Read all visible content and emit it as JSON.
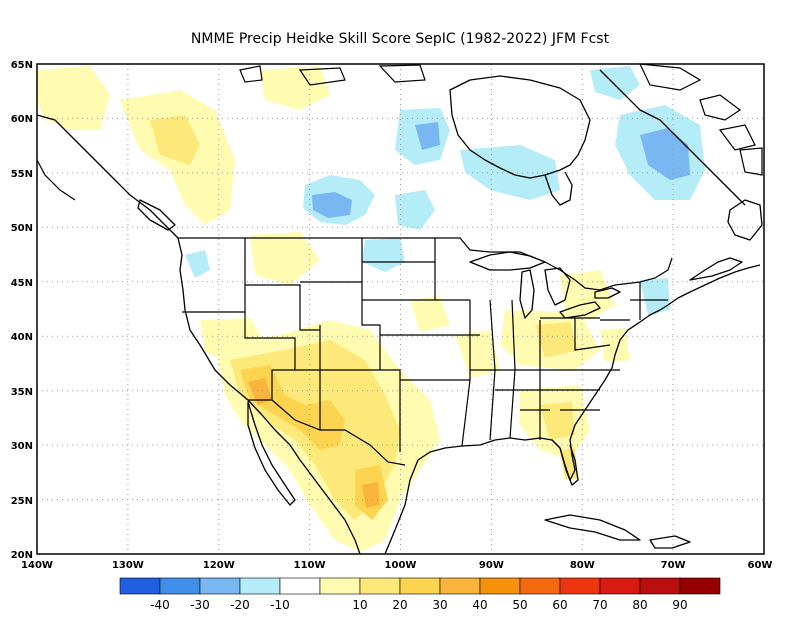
{
  "title": "NMME Precip Heidke Skill Score SepIC (1982-2022) JFM Fcst",
  "latitude_labels": [
    "65N",
    "60N",
    "55N",
    "50N",
    "45N",
    "40N",
    "35N",
    "30N",
    "25N",
    "20N"
  ],
  "longitude_labels": [
    "140W",
    "130W",
    "120W",
    "110W",
    "100W",
    "90W",
    "80W",
    "70W",
    "60W"
  ],
  "colorbar": {
    "colors": [
      "#1f5fe0",
      "#3f8fe8",
      "#78b7f2",
      "#b4ecf7",
      "#ffffff",
      "#fffbb0",
      "#fde87a",
      "#fcd450",
      "#f9b43c",
      "#f5920a",
      "#f46a10",
      "#ee3510",
      "#d81a12",
      "#bb0e0e",
      "#960000"
    ],
    "labels": [
      "-40",
      "-30",
      "-20",
      "-10",
      "10",
      "20",
      "30",
      "40",
      "50",
      "60",
      "70",
      "80",
      "90"
    ]
  }
}
